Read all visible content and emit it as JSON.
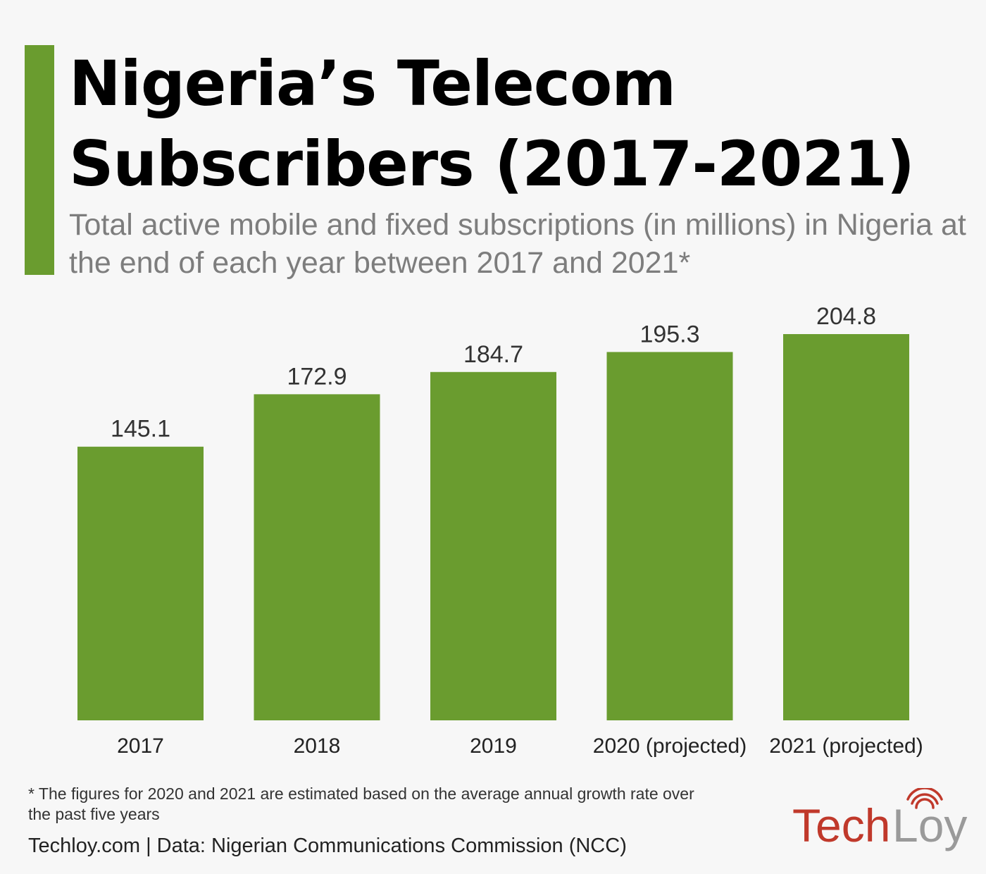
{
  "header": {
    "title": "Nigeria’s Telecom Subscribers (2017-2021)",
    "subtitle": "Total active mobile and fixed subscriptions (in millions) in Nigeria at the end of each year between 2017 and 2021*"
  },
  "colors": {
    "accent": "#6a9c2f",
    "bar": "#6a9c2f",
    "logo_red": "#c0392b",
    "logo_gray": "#9a9a9a"
  },
  "chart_data": {
    "type": "bar",
    "title": "Nigeria’s Telecom Subscribers (2017-2021)",
    "subtitle": "Total active mobile and fixed subscriptions (in millions) in Nigeria at the end of each year between 2017 and 2021*",
    "categories": [
      "2017",
      "2018",
      "2019",
      "2020 (projected)",
      "2021 (projected)"
    ],
    "values": [
      145.1,
      172.9,
      184.7,
      195.3,
      204.8
    ],
    "value_labels": [
      "145.1",
      "172.9",
      "184.7",
      "195.3",
      "204.8"
    ],
    "xlabel": "",
    "ylabel": "",
    "ylim": [
      0,
      204.8
    ],
    "grid": false,
    "legend": "none"
  },
  "footer": {
    "footnote": "* The figures for 2020 and 2021 are estimated based on the average annual growth rate over the past five years",
    "source": "Techloy.com | Data: Nigerian Communications Commission (NCC)"
  },
  "logo": {
    "part1": "Tech",
    "part2": "Loy",
    "icon": "wifi-signal-icon"
  }
}
